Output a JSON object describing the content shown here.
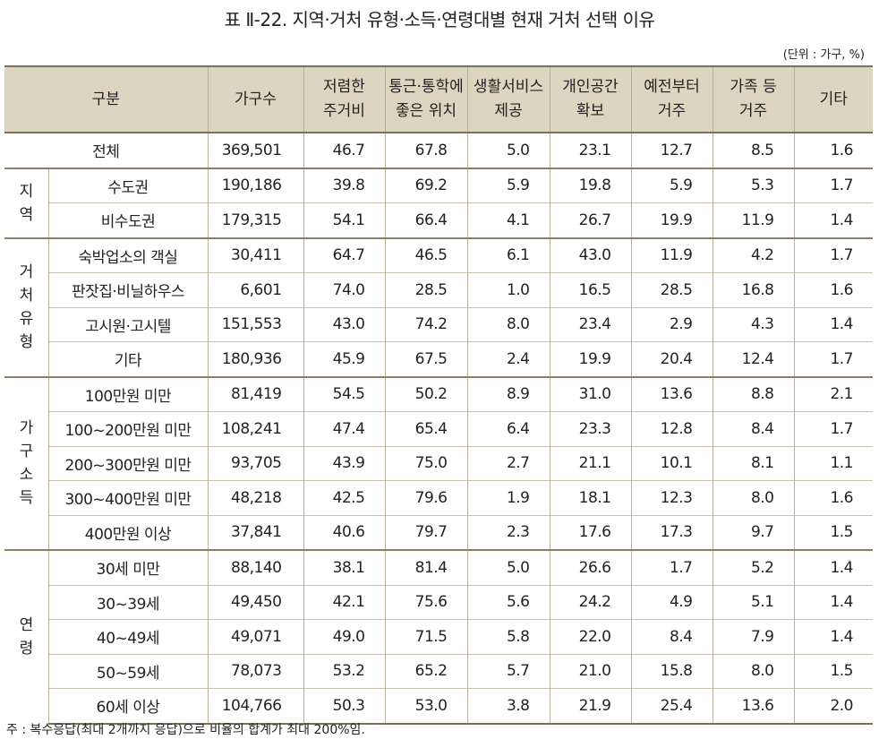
{
  "title": "표 Ⅱ-22. 지역·거처 유형·소득·연령대별 현재 거처 선택 이유",
  "unit": "(단위 : 가구, %)",
  "header": {
    "category": "구분",
    "households": "가구수",
    "col1": [
      "저렴한",
      "주거비"
    ],
    "col2": [
      "통근·통학에",
      "좋은 위치"
    ],
    "col3": [
      "생활서비스",
      "제공"
    ],
    "col4": [
      "개인공간",
      "확보"
    ],
    "col5": [
      "예전부터",
      "거주"
    ],
    "col6": [
      "가족 등",
      "거주"
    ],
    "col7": "기타"
  },
  "total": {
    "label": "전체",
    "values": [
      "369,501",
      "46.7",
      "67.8",
      "5.0",
      "23.1",
      "12.7",
      "8.5",
      "1.6"
    ]
  },
  "groups": [
    {
      "name": [
        "지",
        "역"
      ],
      "rows": [
        {
          "label": "수도권",
          "values": [
            "190,186",
            "39.8",
            "69.2",
            "5.9",
            "19.8",
            "5.9",
            "5.3",
            "1.7"
          ]
        },
        {
          "label": "비수도권",
          "values": [
            "179,315",
            "54.1",
            "66.4",
            "4.1",
            "26.7",
            "19.9",
            "11.9",
            "1.4"
          ]
        }
      ]
    },
    {
      "name": [
        "거",
        "처",
        "유",
        "형"
      ],
      "rows": [
        {
          "label": "숙박업소의 객실",
          "values": [
            "30,411",
            "64.7",
            "46.5",
            "6.1",
            "43.0",
            "11.9",
            "4.2",
            "1.7"
          ]
        },
        {
          "label": "판잣집·비닐하우스",
          "values": [
            "6,601",
            "74.0",
            "28.5",
            "1.0",
            "16.5",
            "28.5",
            "16.8",
            "1.6"
          ]
        },
        {
          "label": "고시원·고시텔",
          "values": [
            "151,553",
            "43.0",
            "74.2",
            "8.0",
            "23.4",
            "2.9",
            "4.3",
            "1.4"
          ]
        },
        {
          "label": "기타",
          "values": [
            "180,936",
            "45.9",
            "67.5",
            "2.4",
            "19.9",
            "20.4",
            "12.4",
            "1.7"
          ]
        }
      ]
    },
    {
      "name": [
        "가",
        "구",
        "소",
        "득"
      ],
      "rows": [
        {
          "label": "100만원 미만",
          "values": [
            "81,419",
            "54.5",
            "50.2",
            "8.9",
            "31.0",
            "13.6",
            "8.8",
            "2.1"
          ]
        },
        {
          "label": "100~200만원 미만",
          "values": [
            "108,241",
            "47.4",
            "65.4",
            "6.4",
            "23.3",
            "12.8",
            "8.4",
            "1.7"
          ]
        },
        {
          "label": "200~300만원 미만",
          "values": [
            "93,705",
            "43.9",
            "75.0",
            "2.7",
            "21.1",
            "10.1",
            "8.1",
            "1.1"
          ]
        },
        {
          "label": "300~400만원 미만",
          "values": [
            "48,218",
            "42.5",
            "79.6",
            "1.9",
            "18.1",
            "12.3",
            "8.0",
            "1.6"
          ]
        },
        {
          "label": "400만원 이상",
          "values": [
            "37,841",
            "40.6",
            "79.7",
            "2.3",
            "17.6",
            "17.3",
            "9.7",
            "1.5"
          ]
        }
      ]
    },
    {
      "name": [
        "연",
        "령"
      ],
      "rows": [
        {
          "label": "30세 미만",
          "values": [
            "88,140",
            "38.1",
            "81.4",
            "5.0",
            "26.6",
            "1.7",
            "5.2",
            "1.4"
          ]
        },
        {
          "label": "30~39세",
          "values": [
            "49,450",
            "42.1",
            "75.6",
            "5.6",
            "24.2",
            "4.9",
            "5.1",
            "1.4"
          ]
        },
        {
          "label": "40~49세",
          "values": [
            "49,071",
            "49.0",
            "71.5",
            "5.8",
            "22.0",
            "8.4",
            "7.9",
            "1.4"
          ]
        },
        {
          "label": "50~59세",
          "values": [
            "78,073",
            "53.2",
            "65.2",
            "5.7",
            "21.0",
            "15.8",
            "8.0",
            "1.5"
          ]
        },
        {
          "label": "60세 이상",
          "values": [
            "104,766",
            "50.3",
            "53.0",
            "3.8",
            "21.9",
            "25.4",
            "13.6",
            "2.0"
          ]
        }
      ]
    }
  ],
  "note": "주 : 복수응답(최대 2개까지 응답)으로 비율의 합계가 최대 200%임."
}
